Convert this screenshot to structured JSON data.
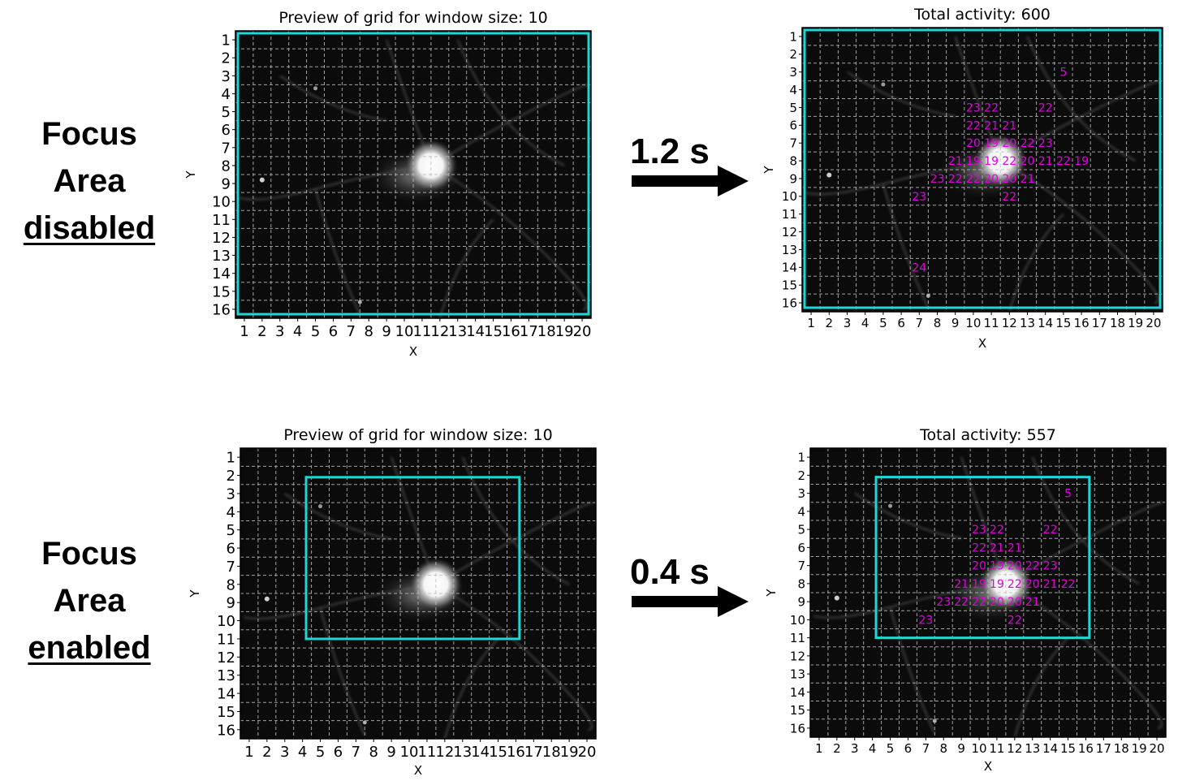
{
  "rows": [
    {
      "label_line1": "Focus",
      "label_line2": "Area",
      "label_line3": "disabled",
      "time": "1.2 s",
      "left_title": "Preview of grid for window size: 10",
      "right_title": "Total activity: 600",
      "activity": [
        {
          "x": 15,
          "y": 3,
          "v": "5"
        },
        {
          "x": 10,
          "y": 5,
          "v": "23"
        },
        {
          "x": 11,
          "y": 5,
          "v": "22"
        },
        {
          "x": 14,
          "y": 5,
          "v": "22"
        },
        {
          "x": 10,
          "y": 6,
          "v": "22"
        },
        {
          "x": 11,
          "y": 6,
          "v": "21"
        },
        {
          "x": 12,
          "y": 6,
          "v": "21"
        },
        {
          "x": 10,
          "y": 7,
          "v": "20"
        },
        {
          "x": 11,
          "y": 7,
          "v": "19"
        },
        {
          "x": 12,
          "y": 7,
          "v": "20"
        },
        {
          "x": 13,
          "y": 7,
          "v": "22"
        },
        {
          "x": 14,
          "y": 7,
          "v": "23"
        },
        {
          "x": 9,
          "y": 8,
          "v": "21"
        },
        {
          "x": 10,
          "y": 8,
          "v": "19"
        },
        {
          "x": 11,
          "y": 8,
          "v": "19"
        },
        {
          "x": 12,
          "y": 8,
          "v": "22"
        },
        {
          "x": 13,
          "y": 8,
          "v": "20"
        },
        {
          "x": 14,
          "y": 8,
          "v": "21"
        },
        {
          "x": 15,
          "y": 8,
          "v": "22"
        },
        {
          "x": 16,
          "y": 8,
          "v": "19"
        },
        {
          "x": 8,
          "y": 9,
          "v": "23"
        },
        {
          "x": 9,
          "y": 9,
          "v": "22"
        },
        {
          "x": 10,
          "y": 9,
          "v": "22"
        },
        {
          "x": 11,
          "y": 9,
          "v": "20"
        },
        {
          "x": 12,
          "y": 9,
          "v": "20"
        },
        {
          "x": 13,
          "y": 9,
          "v": "21"
        },
        {
          "x": 7,
          "y": 10,
          "v": "23"
        },
        {
          "x": 12,
          "y": 10,
          "v": "22"
        },
        {
          "x": 7,
          "y": 14,
          "v": "24"
        }
      ]
    },
    {
      "label_line1": "Focus",
      "label_line2": "Area",
      "label_line3": "enabled",
      "time": "0.4 s",
      "left_title": "Preview of grid for window size: 10",
      "right_title": "Total activity: 557",
      "activity": [
        {
          "x": 15,
          "y": 3,
          "v": "5"
        },
        {
          "x": 10,
          "y": 5,
          "v": "23"
        },
        {
          "x": 11,
          "y": 5,
          "v": "22"
        },
        {
          "x": 14,
          "y": 5,
          "v": "22"
        },
        {
          "x": 10,
          "y": 6,
          "v": "22"
        },
        {
          "x": 11,
          "y": 6,
          "v": "21"
        },
        {
          "x": 12,
          "y": 6,
          "v": "21"
        },
        {
          "x": 10,
          "y": 7,
          "v": "20"
        },
        {
          "x": 11,
          "y": 7,
          "v": "19"
        },
        {
          "x": 12,
          "y": 7,
          "v": "20"
        },
        {
          "x": 13,
          "y": 7,
          "v": "22"
        },
        {
          "x": 14,
          "y": 7,
          "v": "23"
        },
        {
          "x": 9,
          "y": 8,
          "v": "21"
        },
        {
          "x": 10,
          "y": 8,
          "v": "19"
        },
        {
          "x": 11,
          "y": 8,
          "v": "19"
        },
        {
          "x": 12,
          "y": 8,
          "v": "22"
        },
        {
          "x": 13,
          "y": 8,
          "v": "20"
        },
        {
          "x": 14,
          "y": 8,
          "v": "21"
        },
        {
          "x": 15,
          "y": 8,
          "v": "22"
        },
        {
          "x": 8,
          "y": 9,
          "v": "23"
        },
        {
          "x": 9,
          "y": 9,
          "v": "22"
        },
        {
          "x": 10,
          "y": 9,
          "v": "22"
        },
        {
          "x": 11,
          "y": 9,
          "v": "20"
        },
        {
          "x": 12,
          "y": 9,
          "v": "20"
        },
        {
          "x": 13,
          "y": 9,
          "v": "21"
        },
        {
          "x": 7,
          "y": 10,
          "v": "23"
        },
        {
          "x": 12,
          "y": 10,
          "v": "22"
        }
      ]
    }
  ],
  "x_ticks": [
    "1",
    "2",
    "3",
    "4",
    "5",
    "6",
    "7",
    "8",
    "9",
    "10",
    "11",
    "12",
    "13",
    "14",
    "15",
    "16",
    "17",
    "18",
    "19",
    "20"
  ],
  "y_ticks": [
    "1",
    "2",
    "3",
    "4",
    "5",
    "6",
    "7",
    "8",
    "9",
    "10",
    "11",
    "12",
    "13",
    "14",
    "15",
    "16"
  ],
  "x_label": "X",
  "y_label": "Y",
  "colors": {
    "focus_box": "#1fd6d6",
    "activity_text": "#e000e0",
    "grid_line": "#bdbdbd"
  }
}
